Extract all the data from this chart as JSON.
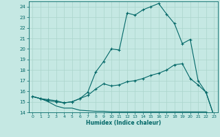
{
  "xlabel": "Humidex (Indice chaleur)",
  "xlim": [
    -0.5,
    23.5
  ],
  "ylim": [
    14,
    24.5
  ],
  "yticks": [
    14,
    15,
    16,
    17,
    18,
    19,
    20,
    21,
    22,
    23,
    24
  ],
  "xticks": [
    0,
    1,
    2,
    3,
    4,
    5,
    6,
    7,
    8,
    9,
    10,
    11,
    12,
    13,
    14,
    15,
    16,
    17,
    18,
    19,
    20,
    21,
    22,
    23
  ],
  "bg_color": "#c5e8e3",
  "grid_color": "#aad4cc",
  "line_color": "#006666",
  "curve1_x": [
    0,
    1,
    2,
    3,
    4,
    5,
    6,
    7,
    8,
    9,
    10,
    11,
    12,
    13,
    14,
    15,
    16,
    17,
    18,
    19,
    20,
    21,
    22,
    23
  ],
  "curve1_y": [
    15.5,
    15.3,
    15.2,
    15.1,
    14.9,
    15.0,
    15.3,
    15.9,
    17.8,
    18.8,
    20.0,
    19.9,
    23.4,
    23.2,
    23.7,
    24.0,
    24.3,
    23.3,
    22.4,
    20.5,
    20.9,
    17.0,
    15.9,
    13.7
  ],
  "curve1_markers": [
    0,
    1,
    2,
    3,
    4,
    5,
    6,
    7,
    8,
    9,
    10,
    11,
    12,
    13,
    14,
    15,
    16,
    17,
    18,
    19,
    20,
    21,
    22,
    23
  ],
  "curve2_x": [
    0,
    1,
    2,
    3,
    4,
    5,
    6,
    7,
    8,
    9,
    10,
    11,
    12,
    13,
    14,
    15,
    16,
    17,
    18,
    19,
    20,
    21,
    22,
    23
  ],
  "curve2_y": [
    15.5,
    15.3,
    15.1,
    15.0,
    14.9,
    15.0,
    15.3,
    15.6,
    16.2,
    16.7,
    16.5,
    16.6,
    16.9,
    17.0,
    17.2,
    17.5,
    17.7,
    18.0,
    18.5,
    18.6,
    17.2,
    16.6,
    15.9,
    13.7
  ],
  "curve2_markers": [
    0,
    1,
    2,
    3,
    4,
    5,
    6,
    7,
    8,
    9,
    10,
    11,
    12,
    13,
    14,
    15,
    16,
    17,
    18,
    19,
    20,
    21,
    22,
    23
  ],
  "curve3_x": [
    0,
    1,
    2,
    3,
    4,
    5,
    6,
    7,
    8,
    9,
    10,
    11,
    12,
    13,
    14,
    15,
    16,
    17,
    18,
    19,
    20,
    21,
    22,
    23
  ],
  "curve3_y": [
    15.5,
    15.3,
    15.0,
    14.6,
    14.4,
    14.4,
    14.2,
    14.15,
    14.1,
    14.1,
    14.05,
    14.05,
    14.05,
    14.05,
    14.05,
    14.05,
    14.05,
    14.05,
    14.05,
    14.05,
    14.05,
    14.05,
    14.05,
    13.7
  ]
}
